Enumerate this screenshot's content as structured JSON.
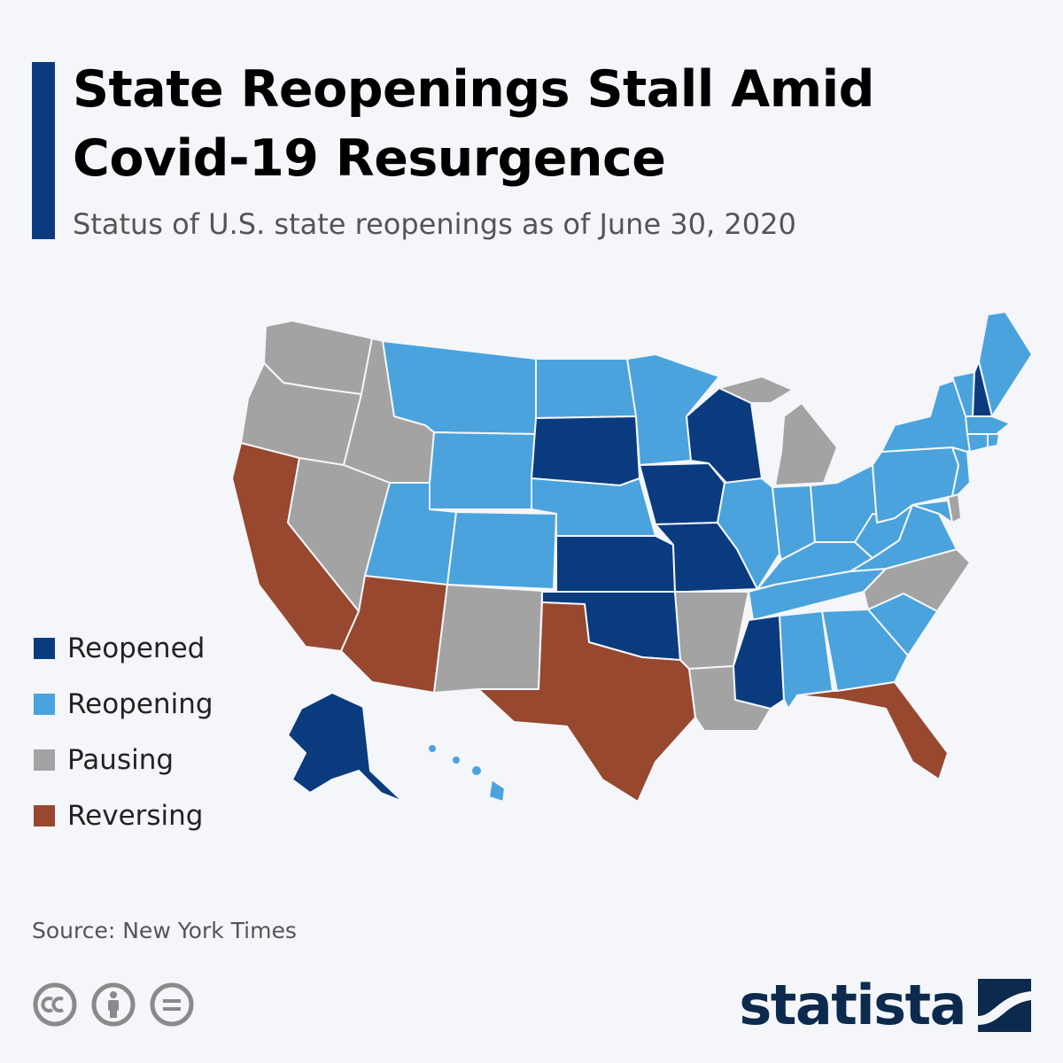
{
  "header": {
    "title": "State Reopenings Stall Amid\nCovid-19 Resurgence",
    "subtitle": "Status of U.S. state reopenings as of June 30, 2020"
  },
  "colors": {
    "accent": "#0a3b7e",
    "reopened": "#0a3b7e",
    "reopening": "#4aa3dc",
    "pausing": "#a3a3a3",
    "reversing": "#97482f",
    "logo": "#0b2a4d"
  },
  "legend": [
    {
      "key": "reopened",
      "label": "Reopened",
      "color": "#0a3b7e"
    },
    {
      "key": "reopening",
      "label": "Reopening",
      "color": "#4aa3dc"
    },
    {
      "key": "pausing",
      "label": "Pausing",
      "color": "#a3a3a3"
    },
    {
      "key": "reversing",
      "label": "Reversing",
      "color": "#97482f"
    }
  ],
  "map_data": {
    "type": "choropleth",
    "region": "United States",
    "states": {
      "Washington": "pausing",
      "Oregon": "pausing",
      "California": "reversing",
      "Idaho": "pausing",
      "Nevada": "pausing",
      "Montana": "reopening",
      "Wyoming": "reopening",
      "Utah": "reopening",
      "Colorado": "reopening",
      "Arizona": "reversing",
      "New Mexico": "pausing",
      "North Dakota": "reopening",
      "South Dakota": "reopened",
      "Nebraska": "reopening",
      "Kansas": "reopened",
      "Oklahoma": "reopened",
      "Texas": "reversing",
      "Minnesota": "reopening",
      "Iowa": "reopened",
      "Missouri": "reopened",
      "Arkansas": "pausing",
      "Louisiana": "pausing",
      "Wisconsin": "reopened",
      "Illinois": "reopening",
      "Michigan": "pausing",
      "Indiana": "reopening",
      "Ohio": "reopening",
      "Kentucky": "reopening",
      "Tennessee": "reopening",
      "Mississippi": "reopened",
      "Alabama": "reopening",
      "Georgia": "reopening",
      "Florida": "reversing",
      "South Carolina": "reopening",
      "North Carolina": "pausing",
      "Virginia": "reopening",
      "West Virginia": "reopening",
      "Pennsylvania": "reopening",
      "New York": "reopening",
      "Vermont": "reopening",
      "New Hampshire": "reopened",
      "Maine": "reopening",
      "Massachusetts": "reopening",
      "Connecticut": "reopening",
      "Rhode Island": "reopening",
      "New Jersey": "reopening",
      "Delaware": "pausing",
      "Maryland": "reopening",
      "Alaska": "reopened",
      "Hawaii": "reopening"
    }
  },
  "footer": {
    "source": "Source: New York Times",
    "icons": [
      "cc-icon",
      "attribution-icon",
      "no-derivatives-icon"
    ],
    "logo_text": "statista"
  }
}
